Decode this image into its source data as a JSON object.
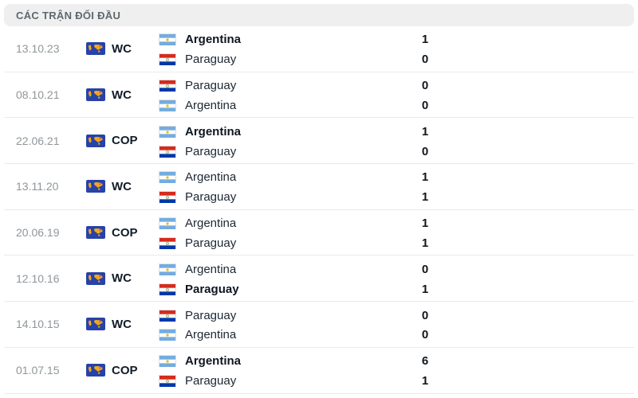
{
  "header": {
    "title": "CÁC TRẬN ĐỐI ĐẦU"
  },
  "matches": [
    {
      "date": "13.10.23",
      "competition": "WC",
      "home": {
        "name": "Argentina",
        "flag": "argentina",
        "score": "1",
        "bold": true
      },
      "away": {
        "name": "Paraguay",
        "flag": "paraguay",
        "score": "0",
        "bold": false
      }
    },
    {
      "date": "08.10.21",
      "competition": "WC",
      "home": {
        "name": "Paraguay",
        "flag": "paraguay",
        "score": "0",
        "bold": false
      },
      "away": {
        "name": "Argentina",
        "flag": "argentina",
        "score": "0",
        "bold": false
      }
    },
    {
      "date": "22.06.21",
      "competition": "COP",
      "home": {
        "name": "Argentina",
        "flag": "argentina",
        "score": "1",
        "bold": true
      },
      "away": {
        "name": "Paraguay",
        "flag": "paraguay",
        "score": "0",
        "bold": false
      }
    },
    {
      "date": "13.11.20",
      "competition": "WC",
      "home": {
        "name": "Argentina",
        "flag": "argentina",
        "score": "1",
        "bold": false
      },
      "away": {
        "name": "Paraguay",
        "flag": "paraguay",
        "score": "1",
        "bold": false
      }
    },
    {
      "date": "20.06.19",
      "competition": "COP",
      "home": {
        "name": "Argentina",
        "flag": "argentina",
        "score": "1",
        "bold": false
      },
      "away": {
        "name": "Paraguay",
        "flag": "paraguay",
        "score": "1",
        "bold": false
      }
    },
    {
      "date": "12.10.16",
      "competition": "WC",
      "home": {
        "name": "Argentina",
        "flag": "argentina",
        "score": "0",
        "bold": false
      },
      "away": {
        "name": "Paraguay",
        "flag": "paraguay",
        "score": "1",
        "bold": true
      }
    },
    {
      "date": "14.10.15",
      "competition": "WC",
      "home": {
        "name": "Paraguay",
        "flag": "paraguay",
        "score": "0",
        "bold": false
      },
      "away": {
        "name": "Argentina",
        "flag": "argentina",
        "score": "0",
        "bold": false
      }
    },
    {
      "date": "01.07.15",
      "competition": "COP",
      "home": {
        "name": "Argentina",
        "flag": "argentina",
        "score": "6",
        "bold": true
      },
      "away": {
        "name": "Paraguay",
        "flag": "paraguay",
        "score": "1",
        "bold": false
      }
    }
  ],
  "icons": {
    "competition": "world-map-on-blue"
  },
  "colors": {
    "header_bg": "#efefef",
    "header_text": "#5d686f",
    "row_divider": "#e9eaeb",
    "date_text": "#8f969b",
    "team_text": "#1b2733",
    "icon_blue": "#2742a8",
    "icon_gold": "#f2a71b",
    "argentina_blue": "#74acdf",
    "argentina_sun": "#f6b40e",
    "paraguay_red": "#d52b1e",
    "paraguay_blue": "#0038a8"
  }
}
